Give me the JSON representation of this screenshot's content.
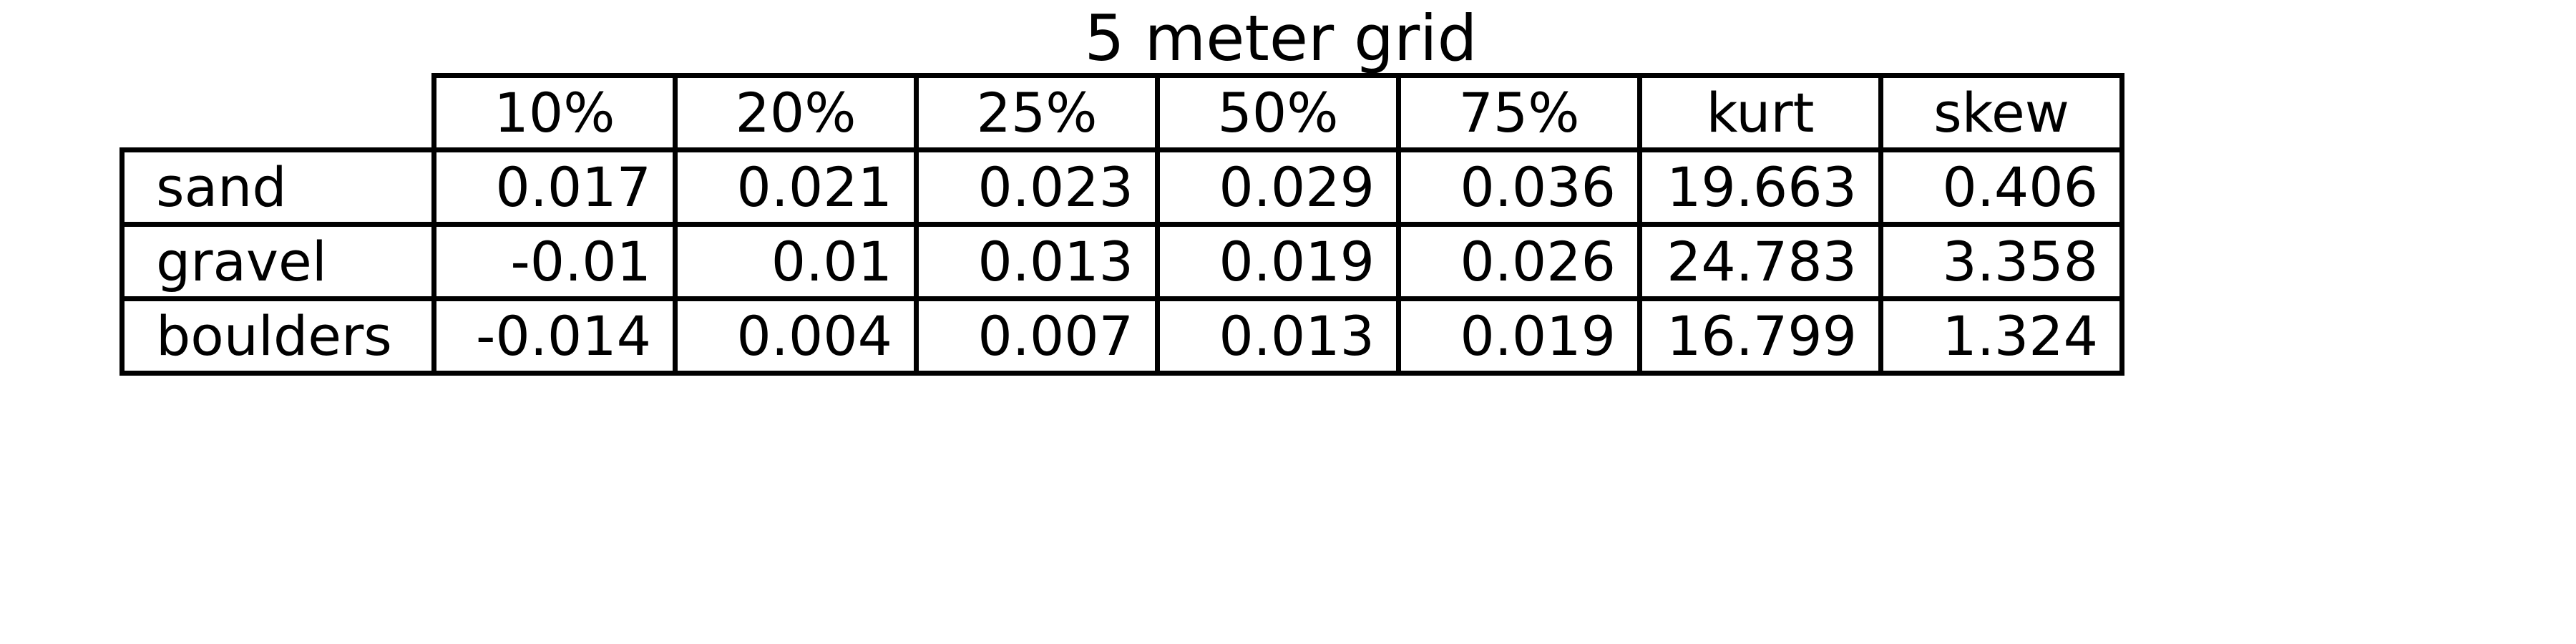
{
  "chart_data": {
    "type": "table",
    "title": "5 meter grid",
    "columns": [
      "10%",
      "20%",
      "25%",
      "50%",
      "75%",
      "kurt",
      "skew"
    ],
    "rows": [
      {
        "label": "sand",
        "values": [
          "0.017",
          "0.021",
          "0.023",
          "0.029",
          "0.036",
          "19.663",
          "0.406"
        ]
      },
      {
        "label": "gravel",
        "values": [
          "-0.01",
          "0.01",
          "0.013",
          "0.019",
          "0.026",
          "24.783",
          "3.358"
        ]
      },
      {
        "label": "boulders",
        "values": [
          "-0.014",
          "0.004",
          "0.007",
          "0.013",
          "0.019",
          "16.799",
          "1.324"
        ]
      }
    ]
  }
}
